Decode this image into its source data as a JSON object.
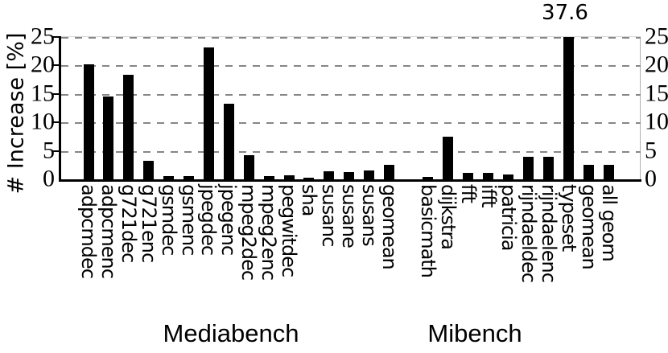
{
  "figure": {
    "background": "#ffffff",
    "colors": {
      "bar": "#000000",
      "grid": "#868686",
      "axis_primary": "#000000",
      "axis_secondary": "#b0b0b0",
      "text": "#000000"
    }
  },
  "chart_data": {
    "type": "bar",
    "title": "",
    "xlabel": "",
    "ylabel": "# Increase [%]",
    "ylim": [
      0,
      25
    ],
    "yticks": [
      0,
      5,
      10,
      15,
      20,
      25
    ],
    "grid": "horizontal dashed gray lines every 5, tick labels on left and right axes",
    "legend": "none",
    "bar_color": "#000000",
    "annotations": [
      {
        "text": "37.6",
        "category": "typeset",
        "note": "bar exceeds axis maximum and is clipped at 25"
      }
    ],
    "groups": [
      {
        "label": "Mediabench",
        "categories": [
          "adpcmdec",
          "adpcmenc",
          "g721dec",
          "g721enc",
          "gsmdec",
          "gsmenc",
          "jpegdec",
          "jpegenc",
          "mpeg2dec",
          "mpeg2enc",
          "pegwitdec",
          "sha",
          "susanc",
          "susane",
          "susans",
          "geomean"
        ],
        "values": [
          20.2,
          14.5,
          18.4,
          3.3,
          0.5,
          0.5,
          23.2,
          13.3,
          4.3,
          0.5,
          0.7,
          0.3,
          1.4,
          1.3,
          1.5,
          2.5
        ]
      },
      {
        "label": "Mibench",
        "categories": [
          "basicmath",
          "dijkstra",
          "fft",
          "ifft",
          "patricia",
          "rijndaeldec",
          "rijndaelenc",
          "typeset",
          "geomean",
          "all geom"
        ],
        "values": [
          0.4,
          7.5,
          1.1,
          1.1,
          0.9,
          4.0,
          4.0,
          37.6,
          2.5,
          2.5
        ]
      }
    ]
  }
}
